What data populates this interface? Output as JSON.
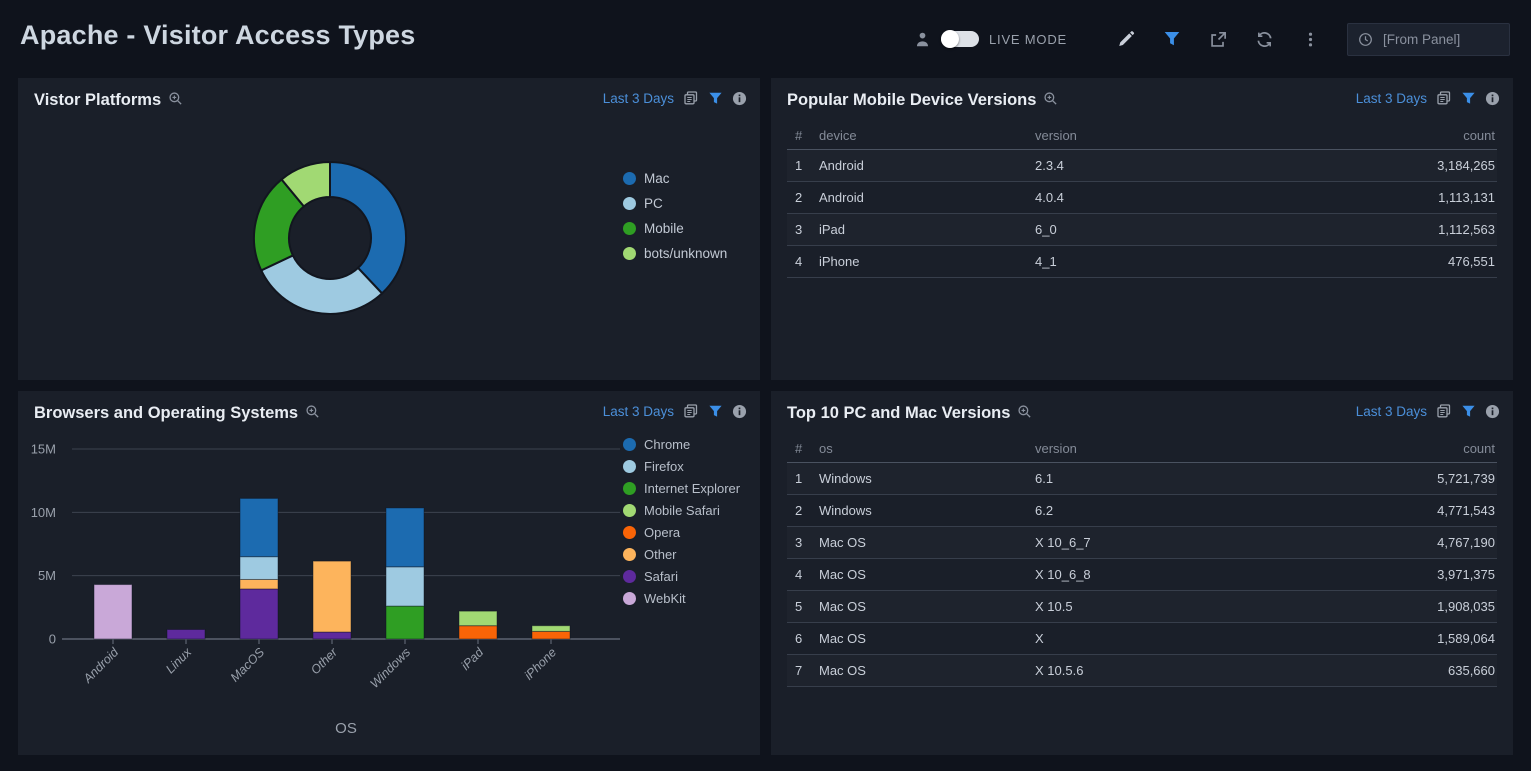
{
  "header": {
    "title": "Apache - Visitor Access Types",
    "live_mode_label": "LIVE MODE",
    "time_input_placeholder": "[From Panel]"
  },
  "panel_controls": {
    "time_range": "Last 3 Days"
  },
  "panels": {
    "visitor_platforms": {
      "title": "Vistor Platforms"
    },
    "mobile_devices": {
      "title": "Popular Mobile Device Versions",
      "columns": [
        "#",
        "device",
        "version",
        "count"
      ],
      "rows": [
        [
          "1",
          "Android",
          "2.3.4",
          "3,184,265"
        ],
        [
          "2",
          "Android",
          "4.0.4",
          "1,113,131"
        ],
        [
          "3",
          "iPad",
          "6_0",
          "1,112,563"
        ],
        [
          "4",
          "iPhone",
          "4_1",
          "476,551"
        ]
      ]
    },
    "browsers_os": {
      "title": "Browsers and Operating Systems"
    },
    "pc_mac": {
      "title": "Top 10 PC and Mac Versions",
      "columns": [
        "#",
        "os",
        "version",
        "count"
      ],
      "rows": [
        [
          "1",
          "Windows",
          "6.1",
          "5,721,739"
        ],
        [
          "2",
          "Windows",
          "6.2",
          "4,771,543"
        ],
        [
          "3",
          "Mac OS",
          "X 10_6_7",
          "4,767,190"
        ],
        [
          "4",
          "Mac OS",
          "X 10_6_8",
          "3,971,375"
        ],
        [
          "5",
          "Mac OS",
          "X 10.5",
          "1,908,035"
        ],
        [
          "6",
          "Mac OS",
          "X",
          "1,589,064"
        ],
        [
          "7",
          "Mac OS",
          "X 10.5.6",
          "635,660"
        ]
      ]
    }
  },
  "chart_data": [
    {
      "type": "pie",
      "title": "Vistor Platforms",
      "donut": true,
      "labels": [
        "Mac",
        "PC",
        "Mobile",
        "bots/unknown"
      ],
      "values_pct": [
        38,
        30,
        21,
        11
      ],
      "colors": [
        "#1c6bb0",
        "#9ecae1",
        "#2f9e23",
        "#a1d973"
      ],
      "legend_position": "right"
    },
    {
      "type": "bar",
      "title": "Browsers and Operating Systems",
      "stacked": true,
      "categories": [
        "Android",
        "Linux",
        "MacOS",
        "Other",
        "Windows",
        "iPad",
        "iPhone"
      ],
      "series": [
        {
          "name": "Chrome",
          "color": "#1c6bb0",
          "values": [
            0,
            0,
            4.6,
            0,
            4.65,
            0,
            0
          ]
        },
        {
          "name": "Firefox",
          "color": "#9ecae1",
          "values": [
            0,
            0,
            1.8,
            0,
            3.1,
            0,
            0
          ]
        },
        {
          "name": "Internet Explorer",
          "color": "#2f9e23",
          "values": [
            0,
            0,
            0,
            0,
            2.6,
            0,
            0
          ]
        },
        {
          "name": "Mobile Safari",
          "color": "#a1d973",
          "values": [
            0,
            0,
            0,
            0,
            0,
            1.15,
            0.45
          ]
        },
        {
          "name": "Opera",
          "color": "#f96407",
          "values": [
            0,
            0,
            0,
            0,
            0,
            1.05,
            0.6
          ]
        },
        {
          "name": "Other",
          "color": "#fdb45c",
          "values": [
            0,
            0,
            0.75,
            5.6,
            0,
            0,
            0
          ]
        },
        {
          "name": "Safari",
          "color": "#5e2a9d",
          "values": [
            0,
            0.75,
            3.95,
            0.55,
            0,
            0,
            0
          ]
        },
        {
          "name": "WebKit",
          "color": "#c9a8d8",
          "values": [
            4.3,
            0,
            0,
            0,
            0,
            0,
            0
          ]
        }
      ],
      "stack_order_bottom_to_top": [
        "WebKit",
        "Safari",
        "Other",
        "Opera",
        "Mobile Safari",
        "Internet Explorer",
        "Firefox",
        "Chrome"
      ],
      "values_unit": "millions",
      "xlabel": "OS",
      "ylabel": "",
      "ylim": [
        0,
        15
      ],
      "yticks": [
        {
          "value": 0,
          "label": "0"
        },
        {
          "value": 5,
          "label": "5M"
        },
        {
          "value": 10,
          "label": "10M"
        },
        {
          "value": 15,
          "label": "15M"
        }
      ],
      "grid": true,
      "legend_position": "right"
    }
  ]
}
